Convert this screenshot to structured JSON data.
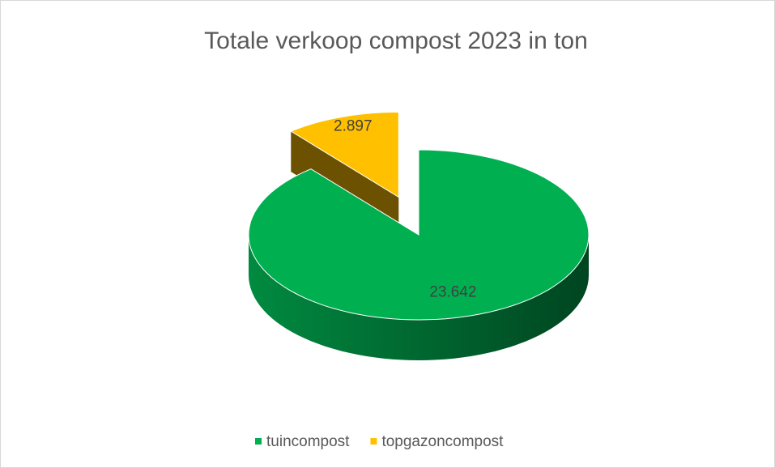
{
  "chart_data": {
    "type": "pie",
    "title": "Totale verkoop compost 2023 in ton",
    "categories": [
      "tuincompost",
      "topgazoncompost"
    ],
    "values": [
      23642,
      2897
    ],
    "value_labels": [
      "23.642",
      "2.897"
    ],
    "colors": [
      "#00b050",
      "#ffc000"
    ],
    "legend": "bottom"
  }
}
